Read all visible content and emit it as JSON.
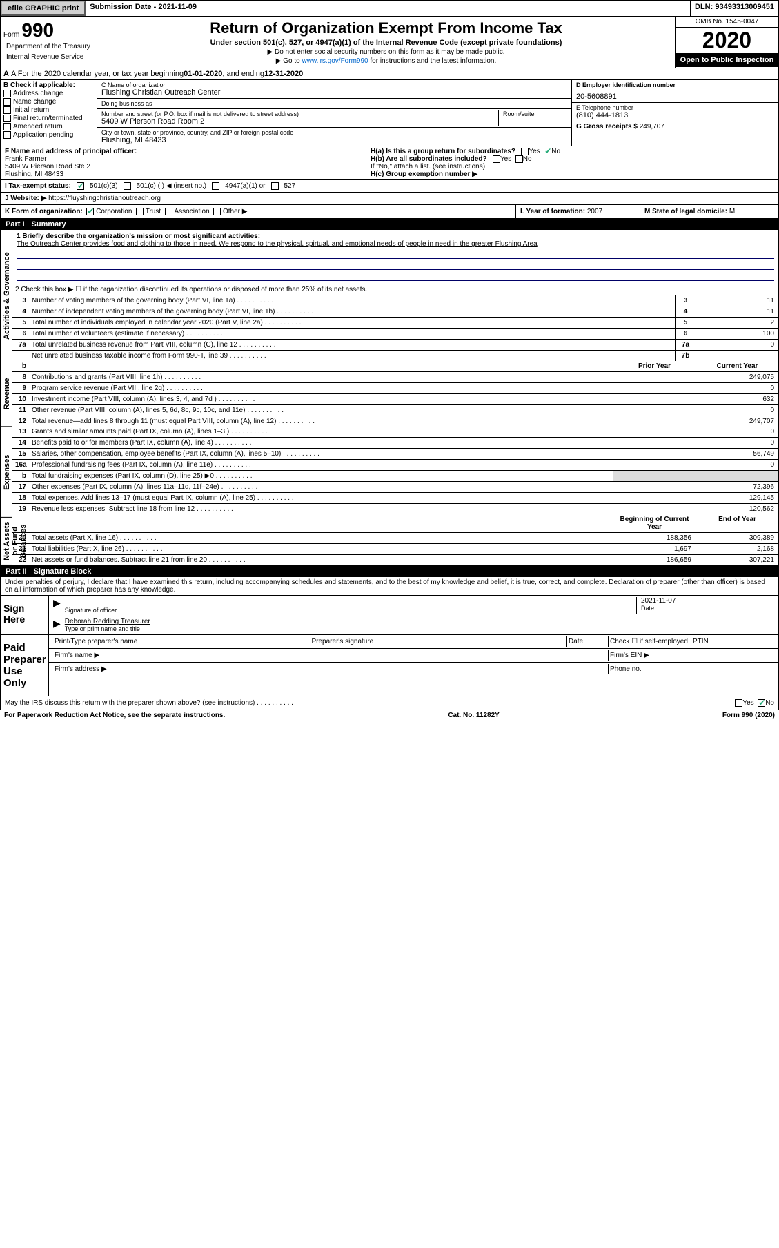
{
  "topbar": {
    "efile": "efile GRAPHIC print",
    "submission_label": "Submission Date - ",
    "submission_date": "2021-11-09",
    "dln_label": "DLN: ",
    "dln": "93493313009451"
  },
  "header": {
    "form_label": "Form",
    "form_number": "990",
    "dept1": "Department of the Treasury",
    "dept2": "Internal Revenue Service",
    "title": "Return of Organization Exempt From Income Tax",
    "subtitle": "Under section 501(c), 527, or 4947(a)(1) of the Internal Revenue Code (except private foundations)",
    "note1": "▶ Do not enter social security numbers on this form as it may be made public.",
    "note2_pre": "▶ Go to ",
    "note2_link": "www.irs.gov/Form990",
    "note2_post": " for instructions and the latest information.",
    "omb": "OMB No. 1545-0047",
    "year": "2020",
    "open": "Open to Public Inspection"
  },
  "row_a": {
    "text_pre": "A For the 2020 calendar year, or tax year beginning ",
    "begin": "01-01-2020",
    "mid": " , and ending ",
    "end": "12-31-2020"
  },
  "section_b": {
    "label": "B Check if applicable:",
    "opts": [
      "Address change",
      "Name change",
      "Initial return",
      "Final return/terminated",
      "Amended return",
      "Application pending"
    ]
  },
  "section_c": {
    "name_label": "C Name of organization",
    "name": "Flushing Christian Outreach Center",
    "dba_label": "Doing business as",
    "dba": "",
    "addr_label": "Number and street (or P.O. box if mail is not delivered to street address)",
    "room_label": "Room/suite",
    "addr": "5409 W Pierson Road Room 2",
    "city_label": "City or town, state or province, country, and ZIP or foreign postal code",
    "city": "Flushing, MI  48433"
  },
  "section_d": {
    "label": "D Employer identification number",
    "val": "20-5608891"
  },
  "section_e": {
    "label": "E Telephone number",
    "val": "(810) 444-1813"
  },
  "section_g": {
    "label": "G Gross receipts $ ",
    "val": "249,707"
  },
  "section_f": {
    "label": "F  Name and address of principal officer:",
    "name": "Frank Farmer",
    "addr1": "5409 W Pierson Road Ste 2",
    "addr2": "Flushing, MI  48433"
  },
  "section_h": {
    "a_label": "H(a)  Is this a group return for subordinates?",
    "a_yes": "Yes",
    "a_no": "No",
    "b_label": "H(b)  Are all subordinates included?",
    "b_note": "If \"No,\" attach a list. (see instructions)",
    "c_label": "H(c)  Group exemption number ▶"
  },
  "row_i": {
    "label": "I  Tax-exempt status:",
    "opt1": "501(c)(3)",
    "opt2": "501(c) (   ) ◀ (insert no.)",
    "opt3": "4947(a)(1) or",
    "opt4": "527"
  },
  "row_j": {
    "label": "J  Website: ▶",
    "val": "https://fluyshingchristianoutreach.org"
  },
  "row_k": {
    "label": "K Form of organization:",
    "opts": [
      "Corporation",
      "Trust",
      "Association",
      "Other ▶"
    ]
  },
  "row_l": {
    "label": "L Year of formation: ",
    "val": "2007"
  },
  "row_m": {
    "label": "M State of legal domicile: ",
    "val": "MI"
  },
  "part1": {
    "header": "Part I",
    "title": "Summary",
    "vlabel1": "Activities & Governance",
    "vlabel2": "Revenue",
    "vlabel3": "Expenses",
    "vlabel4": "Net Assets or Fund Balances",
    "line1_label": "1   Briefly describe the organization's mission or most significant activities:",
    "mission": "The Outreach Center provides food and clothing to those in need. We respond to the physical, spirtual, and emotional needs of people in need in the greater Flushing Area",
    "line2": "2   Check this box ▶ ☐  if the organization discontinued its operations or disposed of more than 25% of its net assets.",
    "hdr_prior": "Prior Year",
    "hdr_current": "Current Year",
    "hdr_begin": "Beginning of Current Year",
    "hdr_end": "End of Year",
    "rows_gov": [
      {
        "n": "3",
        "t": "Number of voting members of the governing body (Part VI, line 1a)",
        "box": "3",
        "v": "11"
      },
      {
        "n": "4",
        "t": "Number of independent voting members of the governing body (Part VI, line 1b)",
        "box": "4",
        "v": "11"
      },
      {
        "n": "5",
        "t": "Total number of individuals employed in calendar year 2020 (Part V, line 2a)",
        "box": "5",
        "v": "2"
      },
      {
        "n": "6",
        "t": "Total number of volunteers (estimate if necessary)",
        "box": "6",
        "v": "100"
      },
      {
        "n": "7a",
        "t": "Total unrelated business revenue from Part VIII, column (C), line 12",
        "box": "7a",
        "v": "0"
      },
      {
        "n": "",
        "t": "Net unrelated business taxable income from Form 990-T, line 39",
        "box": "7b",
        "v": ""
      }
    ],
    "rows_rev": [
      {
        "n": "8",
        "t": "Contributions and grants (Part VIII, line 1h)",
        "p": "",
        "c": "249,075"
      },
      {
        "n": "9",
        "t": "Program service revenue (Part VIII, line 2g)",
        "p": "",
        "c": "0"
      },
      {
        "n": "10",
        "t": "Investment income (Part VIII, column (A), lines 3, 4, and 7d )",
        "p": "",
        "c": "632"
      },
      {
        "n": "11",
        "t": "Other revenue (Part VIII, column (A), lines 5, 6d, 8c, 9c, 10c, and 11e)",
        "p": "",
        "c": "0"
      },
      {
        "n": "12",
        "t": "Total revenue—add lines 8 through 11 (must equal Part VIII, column (A), line 12)",
        "p": "",
        "c": "249,707"
      }
    ],
    "rows_exp": [
      {
        "n": "13",
        "t": "Grants and similar amounts paid (Part IX, column (A), lines 1–3 )",
        "p": "",
        "c": "0"
      },
      {
        "n": "14",
        "t": "Benefits paid to or for members (Part IX, column (A), line 4)",
        "p": "",
        "c": "0"
      },
      {
        "n": "15",
        "t": "Salaries, other compensation, employee benefits (Part IX, column (A), lines 5–10)",
        "p": "",
        "c": "56,749"
      },
      {
        "n": "16a",
        "t": "Professional fundraising fees (Part IX, column (A), line 11e)",
        "p": "",
        "c": "0"
      },
      {
        "n": "b",
        "t": "Total fundraising expenses (Part IX, column (D), line 25) ▶0",
        "p": "shaded",
        "c": "shaded"
      },
      {
        "n": "17",
        "t": "Other expenses (Part IX, column (A), lines 11a–11d, 11f–24e)",
        "p": "",
        "c": "72,396"
      },
      {
        "n": "18",
        "t": "Total expenses. Add lines 13–17 (must equal Part IX, column (A), line 25)",
        "p": "",
        "c": "129,145"
      },
      {
        "n": "19",
        "t": "Revenue less expenses. Subtract line 18 from line 12",
        "p": "",
        "c": "120,562"
      }
    ],
    "rows_net": [
      {
        "n": "20",
        "t": "Total assets (Part X, line 16)",
        "p": "188,356",
        "c": "309,389"
      },
      {
        "n": "21",
        "t": "Total liabilities (Part X, line 26)",
        "p": "1,697",
        "c": "2,168"
      },
      {
        "n": "22",
        "t": "Net assets or fund balances. Subtract line 21 from line 20",
        "p": "186,659",
        "c": "307,221"
      }
    ]
  },
  "part2": {
    "header": "Part II",
    "title": "Signature Block",
    "declaration": "Under penalties of perjury, I declare that I have examined this return, including accompanying schedules and statements, and to the best of my knowledge and belief, it is true, correct, and complete. Declaration of preparer (other than officer) is based on all information of which preparer has any knowledge.",
    "sign_here": "Sign Here",
    "sig_officer": "Signature of officer",
    "sig_date_label": "Date",
    "sig_date": "2021-11-07",
    "sig_name": "Deborah Redding Treasurer",
    "sig_type": "Type or print name and title",
    "paid_label": "Paid Preparer Use Only",
    "prep_name": "Print/Type preparer's name",
    "prep_sig": "Preparer's signature",
    "prep_date": "Date",
    "prep_check": "Check ☐ if self-employed",
    "ptin": "PTIN",
    "firm_name": "Firm's name  ▶",
    "firm_ein": "Firm's EIN ▶",
    "firm_addr": "Firm's address ▶",
    "phone": "Phone no.",
    "discuss": "May the IRS discuss this return with the preparer shown above? (see instructions)",
    "yes": "Yes",
    "no": "No"
  },
  "footer": {
    "left": "For Paperwork Reduction Act Notice, see the separate instructions.",
    "mid": "Cat. No. 11282Y",
    "right": "Form 990 (2020)"
  }
}
